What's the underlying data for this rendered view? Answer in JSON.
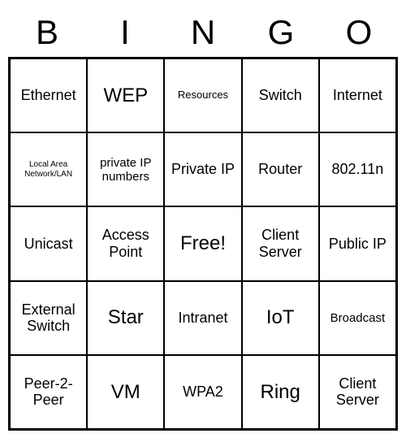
{
  "header": [
    "B",
    "I",
    "N",
    "G",
    "O"
  ],
  "card": {
    "type": "table",
    "columns": 5,
    "rows": 5,
    "border_color": "#000000",
    "background_color": "#ffffff",
    "text_color": "#000000",
    "header_fontsize": 42,
    "cells": [
      [
        {
          "text": "Ethernet",
          "size": "med"
        },
        {
          "text": "WEP",
          "size": "large"
        },
        {
          "text": "Resources",
          "size": "small"
        },
        {
          "text": "Switch",
          "size": "med"
        },
        {
          "text": "Internet",
          "size": "med"
        }
      ],
      [
        {
          "text": "Local Area Network/LAN",
          "size": "tiny"
        },
        {
          "text": "private IP numbers",
          "size": ""
        },
        {
          "text": "Private IP",
          "size": "med"
        },
        {
          "text": "Router",
          "size": "med"
        },
        {
          "text": "802.11n",
          "size": "med"
        }
      ],
      [
        {
          "text": "Unicast",
          "size": "med"
        },
        {
          "text": "Access Point",
          "size": "med"
        },
        {
          "text": "Free!",
          "size": "large"
        },
        {
          "text": "Client Server",
          "size": "med"
        },
        {
          "text": "Public IP",
          "size": "med"
        }
      ],
      [
        {
          "text": "External Switch",
          "size": "med"
        },
        {
          "text": "Star",
          "size": "large"
        },
        {
          "text": "Intranet",
          "size": "med"
        },
        {
          "text": "IoT",
          "size": "large"
        },
        {
          "text": "Broadcast",
          "size": ""
        }
      ],
      [
        {
          "text": "Peer-2-Peer",
          "size": "med"
        },
        {
          "text": "VM",
          "size": "large"
        },
        {
          "text": "WPA2",
          "size": "med"
        },
        {
          "text": "Ring",
          "size": "large"
        },
        {
          "text": "Client Server",
          "size": "med"
        }
      ]
    ]
  }
}
